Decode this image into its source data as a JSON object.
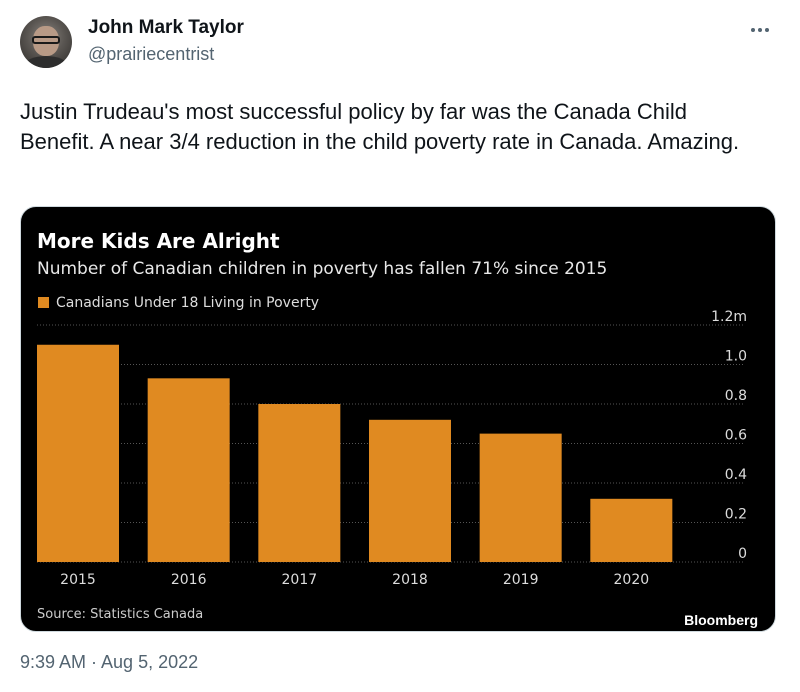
{
  "author": {
    "name": "John Mark Taylor",
    "handle": "@prairiecentrist"
  },
  "tweet": {
    "text": "Justin Trudeau's most successful policy by far was the Canada Child Benefit. A near 3/4 reduction in the child poverty rate in Canada. Amazing.",
    "timestamp": "9:39 AM · Aug 5, 2022"
  },
  "colors": {
    "bar": "#e08a21",
    "chart_bg": "#000000",
    "text_secondary": "#536471"
  },
  "chart_data": {
    "type": "bar",
    "title": "More Kids Are Alright",
    "subtitle": "Number of Canadian children in poverty has fallen 71% since 2015",
    "legend": "Canadians Under 18 Living in Poverty",
    "categories": [
      "2015",
      "2016",
      "2017",
      "2018",
      "2019",
      "2020"
    ],
    "values": [
      1.1,
      0.93,
      0.8,
      0.72,
      0.65,
      0.32
    ],
    "yticks": [
      "0",
      "0.2",
      "0.4",
      "0.6",
      "0.8",
      "1.0",
      "1.2m"
    ],
    "ylim": [
      0,
      1.2
    ],
    "axis_side": "right",
    "source": "Source: Statistics Canada",
    "brand": "Bloomberg"
  }
}
